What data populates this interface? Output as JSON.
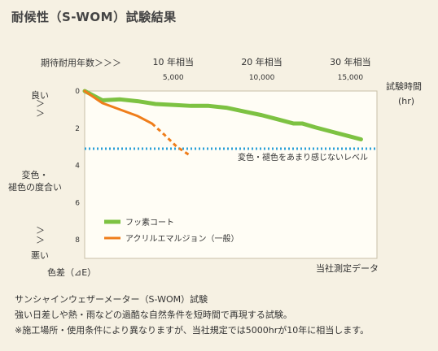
{
  "title": "耐候性（S-WOM）試験結果",
  "labels": {
    "years_header": "期待耐用年数＞＞＞",
    "test_time": "試験時間",
    "test_time_unit": "(hr)",
    "good": "良い",
    "good_arrows": "＞\n＞",
    "mid": "変色・\n褪色の度合い",
    "bad_arrows": "＞\n＞",
    "bad": "悪い",
    "delta_e": "色差（⊿E）",
    "threshold": "変色・褪色をあまり感じないレベル",
    "source": "当社測定データ"
  },
  "notes": [
    "サンシャインウェザーメーター（S-WOM）試験",
    "強い日差しや熱・雨などの過酷な自然条件を短時間で再現する試験。",
    "※施工場所・使用条件により異なりますが、当社規定では5000hrが10年に相当します。"
  ],
  "colors": {
    "series1": "#7dc242",
    "series2": "#ef7d1a",
    "threshold": "#2aa0d8",
    "plot_bg": "#fffdf5",
    "plot_border": "#c8c0a8"
  },
  "chart_data": {
    "type": "line",
    "xlabel": "試験時間 (hr)",
    "ylabel": "色差（⊿E）",
    "xlim": [
      0,
      16500
    ],
    "ylim": [
      0,
      9
    ],
    "y_reversed": true,
    "x_ticks": [
      "0",
      "5,000",
      "10,000",
      "15,000"
    ],
    "x_tick_values": [
      0,
      5000,
      10000,
      15000
    ],
    "y_ticks": [
      "0",
      "2",
      "4",
      "6",
      "8"
    ],
    "y_tick_values": [
      0,
      2,
      4,
      6,
      8
    ],
    "year_ticks": [
      {
        "x": 5000,
        "label": "10 年相当"
      },
      {
        "x": 10000,
        "label": "20 年相当"
      },
      {
        "x": 15000,
        "label": "30 年相当"
      }
    ],
    "threshold": {
      "y": 3.1
    },
    "series": [
      {
        "name": "フッ素コート",
        "x": [
          0,
          1000,
          2000,
          3000,
          4000,
          5000,
          6000,
          7000,
          8000,
          9000,
          10000,
          11000,
          11800,
          12300,
          13000,
          14000,
          15000,
          15600
        ],
        "y": [
          0,
          0.5,
          0.45,
          0.55,
          0.7,
          0.75,
          0.8,
          0.8,
          0.9,
          1.1,
          1.3,
          1.55,
          1.75,
          1.75,
          1.95,
          2.2,
          2.45,
          2.6
        ]
      },
      {
        "name": "アクリルエマルジョン（一般）",
        "x": [
          0,
          1000,
          2000,
          3000,
          3800,
          4500,
          5200,
          6000
        ],
        "y": [
          0,
          0.65,
          1.0,
          1.35,
          1.75,
          2.35,
          3.0,
          3.5
        ],
        "dashed_from_index": 4
      }
    ]
  }
}
